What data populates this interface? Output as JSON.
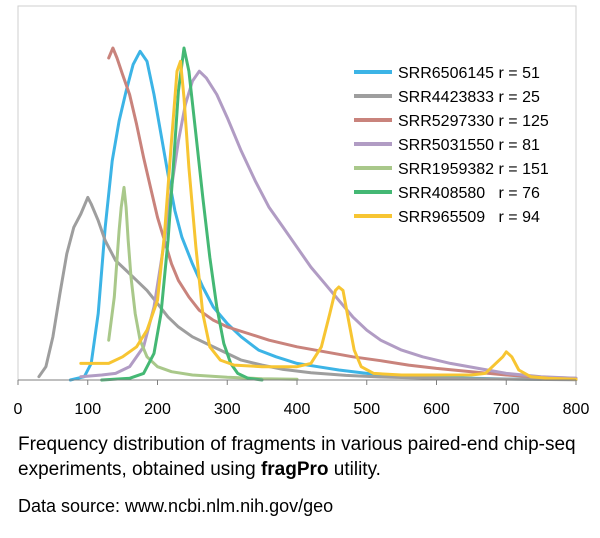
{
  "chart_data": {
    "type": "line",
    "title": "",
    "xlabel": "",
    "ylabel": "",
    "xlim": [
      0,
      800
    ],
    "ylim": [
      0,
      1
    ],
    "x_ticks": [
      0,
      100,
      200,
      300,
      400,
      500,
      600,
      700,
      800
    ],
    "grid": false,
    "legend_position": "top-right",
    "series": [
      {
        "name": "SRR6506145 r = 51",
        "color": "#3cb4e6",
        "points": [
          [
            75,
            0
          ],
          [
            95,
            0.01
          ],
          [
            105,
            0.05
          ],
          [
            115,
            0.2
          ],
          [
            125,
            0.46
          ],
          [
            135,
            0.66
          ],
          [
            145,
            0.78
          ],
          [
            155,
            0.87
          ],
          [
            165,
            0.95
          ],
          [
            175,
            0.99
          ],
          [
            185,
            0.96
          ],
          [
            195,
            0.86
          ],
          [
            205,
            0.74
          ],
          [
            215,
            0.62
          ],
          [
            225,
            0.51
          ],
          [
            235,
            0.43
          ],
          [
            250,
            0.35
          ],
          [
            265,
            0.28
          ],
          [
            280,
            0.22
          ],
          [
            300,
            0.17
          ],
          [
            320,
            0.13
          ],
          [
            345,
            0.09
          ],
          [
            370,
            0.07
          ],
          [
            400,
            0.05
          ],
          [
            430,
            0.04
          ],
          [
            460,
            0.03
          ],
          [
            500,
            0.02
          ],
          [
            550,
            0.01
          ],
          [
            600,
            0.008
          ],
          [
            650,
            0.005
          ],
          [
            700,
            0.003
          ],
          [
            750,
            0.002
          ]
        ]
      },
      {
        "name": "SRR4423833 r = 25",
        "color": "#9e9e9e",
        "points": [
          [
            30,
            0.01
          ],
          [
            40,
            0.04
          ],
          [
            50,
            0.13
          ],
          [
            60,
            0.26
          ],
          [
            70,
            0.38
          ],
          [
            80,
            0.46
          ],
          [
            90,
            0.5
          ],
          [
            100,
            0.55
          ],
          [
            105,
            0.53
          ],
          [
            115,
            0.48
          ],
          [
            125,
            0.42
          ],
          [
            140,
            0.36
          ],
          [
            155,
            0.33
          ],
          [
            170,
            0.3
          ],
          [
            185,
            0.27
          ],
          [
            200,
            0.23
          ],
          [
            215,
            0.19
          ],
          [
            230,
            0.16
          ],
          [
            250,
            0.13
          ],
          [
            270,
            0.11
          ],
          [
            290,
            0.09
          ],
          [
            320,
            0.06
          ],
          [
            350,
            0.045
          ],
          [
            380,
            0.032
          ],
          [
            420,
            0.022
          ],
          [
            470,
            0.014
          ],
          [
            520,
            0.009
          ],
          [
            580,
            0.006
          ],
          [
            650,
            0.004
          ],
          [
            720,
            0.002
          ],
          [
            800,
            0.001
          ]
        ]
      },
      {
        "name": "SRR5297330 r = 125",
        "color": "#c9837c",
        "points": [
          [
            130,
            0.97
          ],
          [
            136,
            1.0
          ],
          [
            142,
            0.97
          ],
          [
            150,
            0.92
          ],
          [
            160,
            0.86
          ],
          [
            170,
            0.77
          ],
          [
            180,
            0.67
          ],
          [
            190,
            0.58
          ],
          [
            200,
            0.49
          ],
          [
            210,
            0.42
          ],
          [
            220,
            0.35
          ],
          [
            230,
            0.3
          ],
          [
            245,
            0.25
          ],
          [
            260,
            0.21
          ],
          [
            280,
            0.18
          ],
          [
            300,
            0.16
          ],
          [
            330,
            0.14
          ],
          [
            360,
            0.12
          ],
          [
            400,
            0.1
          ],
          [
            440,
            0.085
          ],
          [
            480,
            0.07
          ],
          [
            520,
            0.058
          ],
          [
            560,
            0.045
          ],
          [
            600,
            0.035
          ],
          [
            650,
            0.025
          ],
          [
            700,
            0.015
          ],
          [
            750,
            0.008
          ],
          [
            800,
            0.005
          ]
        ]
      },
      {
        "name": "SRR5031550 r = 81",
        "color": "#b19cc4",
        "points": [
          [
            90,
            0.01
          ],
          [
            120,
            0.015
          ],
          [
            140,
            0.02
          ],
          [
            160,
            0.04
          ],
          [
            180,
            0.1
          ],
          [
            195,
            0.22
          ],
          [
            210,
            0.42
          ],
          [
            220,
            0.58
          ],
          [
            230,
            0.72
          ],
          [
            240,
            0.83
          ],
          [
            250,
            0.9
          ],
          [
            260,
            0.93
          ],
          [
            270,
            0.91
          ],
          [
            285,
            0.86
          ],
          [
            300,
            0.79
          ],
          [
            320,
            0.69
          ],
          [
            340,
            0.6
          ],
          [
            360,
            0.52
          ],
          [
            380,
            0.46
          ],
          [
            400,
            0.4
          ],
          [
            420,
            0.34
          ],
          [
            440,
            0.29
          ],
          [
            460,
            0.24
          ],
          [
            480,
            0.19
          ],
          [
            500,
            0.15
          ],
          [
            520,
            0.12
          ],
          [
            550,
            0.09
          ],
          [
            580,
            0.07
          ],
          [
            620,
            0.05
          ],
          [
            660,
            0.035
          ],
          [
            700,
            0.02
          ],
          [
            750,
            0.01
          ],
          [
            800,
            0.005
          ]
        ]
      },
      {
        "name": "SRR1959382 r = 151",
        "color": "#a9c88a",
        "points": [
          [
            130,
            0.12
          ],
          [
            138,
            0.25
          ],
          [
            145,
            0.45
          ],
          [
            148,
            0.52
          ],
          [
            152,
            0.58
          ],
          [
            155,
            0.52
          ],
          [
            158,
            0.42
          ],
          [
            162,
            0.31
          ],
          [
            168,
            0.2
          ],
          [
            175,
            0.12
          ],
          [
            185,
            0.07
          ],
          [
            200,
            0.04
          ],
          [
            220,
            0.025
          ],
          [
            250,
            0.015
          ],
          [
            300,
            0.008
          ],
          [
            350,
            0.004
          ],
          [
            400,
            0.002
          ]
        ]
      },
      {
        "name": "SRR408580   r = 76",
        "color": "#44b874",
        "points": [
          [
            120,
            0
          ],
          [
            160,
            0.005
          ],
          [
            180,
            0.02
          ],
          [
            195,
            0.08
          ],
          [
            205,
            0.2
          ],
          [
            215,
            0.42
          ],
          [
            223,
            0.65
          ],
          [
            230,
            0.87
          ],
          [
            238,
            1.0
          ],
          [
            245,
            0.93
          ],
          [
            255,
            0.74
          ],
          [
            265,
            0.55
          ],
          [
            275,
            0.37
          ],
          [
            285,
            0.22
          ],
          [
            295,
            0.11
          ],
          [
            305,
            0.05
          ],
          [
            315,
            0.02
          ],
          [
            330,
            0.005
          ],
          [
            350,
            0
          ]
        ]
      },
      {
        "name": "SRR965509   r = 94",
        "color": "#f7c532",
        "points": [
          [
            90,
            0.05
          ],
          [
            110,
            0.05
          ],
          [
            130,
            0.05
          ],
          [
            150,
            0.07
          ],
          [
            170,
            0.1
          ],
          [
            185,
            0.15
          ],
          [
            200,
            0.24
          ],
          [
            210,
            0.44
          ],
          [
            220,
            0.72
          ],
          [
            228,
            0.93
          ],
          [
            233,
            0.96
          ],
          [
            238,
            0.85
          ],
          [
            245,
            0.64
          ],
          [
            255,
            0.4
          ],
          [
            265,
            0.2
          ],
          [
            275,
            0.1
          ],
          [
            290,
            0.06
          ],
          [
            310,
            0.045
          ],
          [
            350,
            0.04
          ],
          [
            400,
            0.04
          ],
          [
            420,
            0.05
          ],
          [
            435,
            0.1
          ],
          [
            447,
            0.2
          ],
          [
            455,
            0.27
          ],
          [
            460,
            0.28
          ],
          [
            466,
            0.27
          ],
          [
            473,
            0.19
          ],
          [
            482,
            0.09
          ],
          [
            492,
            0.04
          ],
          [
            510,
            0.02
          ],
          [
            550,
            0.015
          ],
          [
            600,
            0.015
          ],
          [
            650,
            0.015
          ],
          [
            670,
            0.02
          ],
          [
            685,
            0.05
          ],
          [
            695,
            0.07
          ],
          [
            700,
            0.085
          ],
          [
            708,
            0.07
          ],
          [
            718,
            0.03
          ],
          [
            735,
            0.01
          ],
          [
            760,
            0.005
          ],
          [
            800,
            0.002
          ]
        ]
      }
    ]
  },
  "caption": {
    "line_before_bold": "Frequency distribution of fragments in various paired-end chip-seq experiments, obtained using ",
    "bold": "fragPro",
    "line_after_bold": " utility."
  },
  "source": "Data source: www.ncbi.nlm.nih.gov/geo"
}
